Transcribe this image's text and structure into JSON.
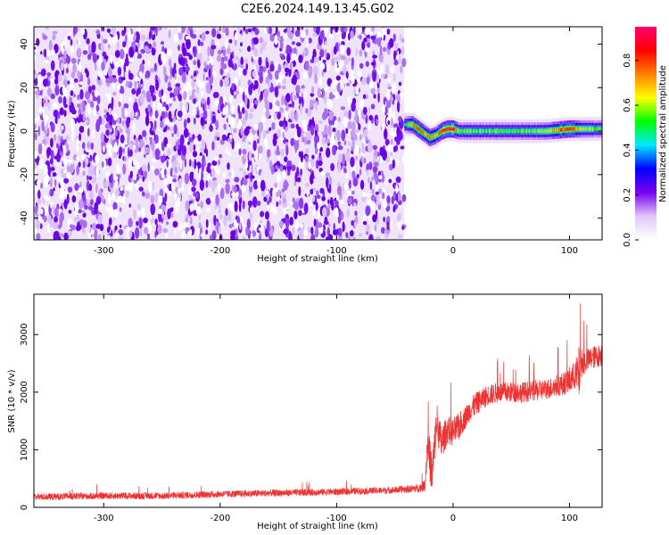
{
  "title": "C2E6.2024.149.13.45.G02",
  "chart_data": [
    {
      "type": "heatmap",
      "xlabel": "Height of straight line (km)",
      "ylabel": "Frequency (Hz)",
      "xlim": [
        -360,
        128
      ],
      "ylim": [
        -50,
        48
      ],
      "xticks": [
        -300,
        -200,
        -100,
        0,
        100
      ],
      "yticks": [
        -40,
        -20,
        0,
        20,
        40
      ],
      "noise_region_x": [
        -360,
        -42
      ],
      "signal_ridge": {
        "x": [
          -42,
          -35,
          -30,
          -25,
          -20,
          -15,
          -10,
          -5,
          0,
          5,
          20,
          50,
          80,
          100,
          110,
          128
        ],
        "freq_hz": [
          3,
          3,
          1,
          -1,
          -3,
          -2,
          0,
          1,
          1,
          0,
          0,
          0,
          0,
          1,
          1,
          1
        ],
        "peak_amplitude": [
          0.45,
          0.7,
          0.8,
          0.7,
          0.75,
          0.7,
          0.8,
          0.85,
          0.9,
          0.55,
          0.55,
          0.55,
          0.6,
          0.85,
          0.6,
          0.55
        ]
      },
      "colorbar": {
        "label": "Normalized spectral amplitude",
        "range": [
          0,
          0.95
        ],
        "ticks": [
          "0.0",
          "0.2",
          "0.4",
          "0.6",
          "0.8"
        ],
        "colors": [
          "#ffffff",
          "#e0c8f8",
          "#7a00f0",
          "#0000ff",
          "#00e8ff",
          "#00ff00",
          "#ffff00",
          "#ff8000",
          "#ff0000",
          "#ff0070"
        ]
      },
      "grid": false
    },
    {
      "type": "line",
      "xlabel": "Height of straight line (km)",
      "ylabel": "SNR (10 * v/v)",
      "xlim": [
        -360,
        128
      ],
      "ylim": [
        0,
        3700
      ],
      "xticks": [
        -300,
        -200,
        -100,
        0,
        100
      ],
      "yticks": [
        0,
        1000,
        2000,
        3000
      ],
      "series": [
        {
          "color": "#ee3333",
          "x": [
            -360,
            -300,
            -250,
            -200,
            -150,
            -100,
            -50,
            -30,
            -24,
            -22,
            -18,
            -14,
            -10,
            -5,
            0,
            5,
            10,
            15,
            20,
            30,
            40,
            60,
            80,
            95,
            100,
            105,
            108,
            110,
            115,
            120,
            128
          ],
          "y": [
            180,
            200,
            200,
            230,
            250,
            270,
            300,
            330,
            380,
            1150,
            550,
            1500,
            1100,
            1350,
            1300,
            1400,
            1550,
            1700,
            1800,
            1950,
            2000,
            2000,
            2050,
            2150,
            2200,
            2300,
            2300,
            2500,
            2550,
            2600,
            2650
          ],
          "noise_amplitude": [
            60,
            60,
            60,
            60,
            60,
            60,
            60,
            70,
            100,
            350,
            400,
            350,
            300,
            250,
            250,
            250,
            200,
            200,
            200,
            180,
            180,
            180,
            180,
            200,
            250,
            250,
            500,
            250,
            200,
            200,
            200
          ]
        }
      ],
      "grid": false
    }
  ]
}
